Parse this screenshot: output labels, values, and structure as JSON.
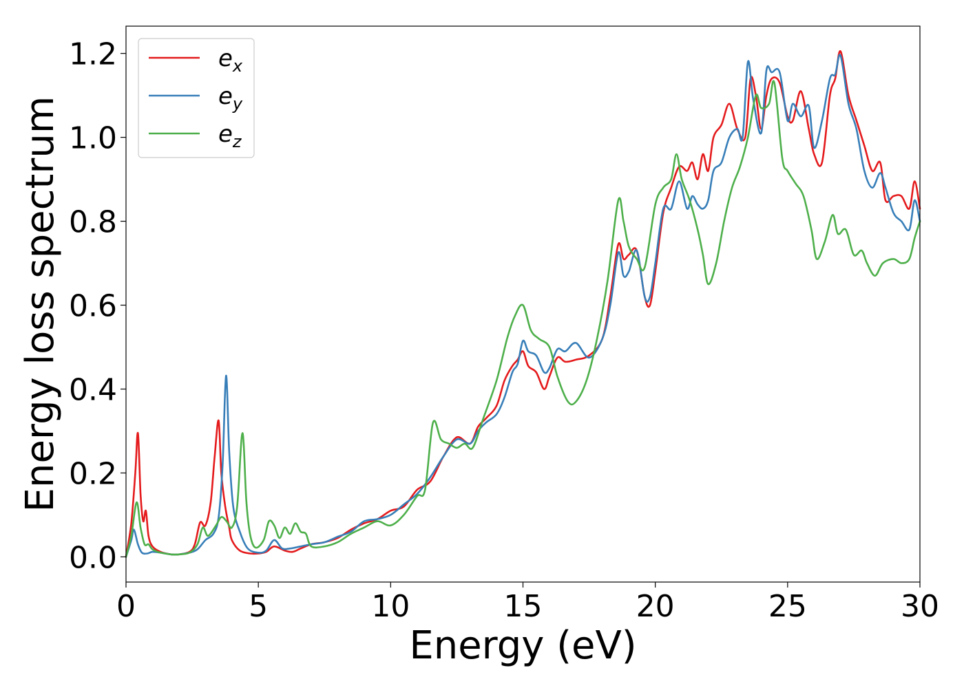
{
  "chart_data": {
    "type": "line",
    "xlabel": "Energy (eV)",
    "ylabel": "Energy loss spectrum",
    "xlim": [
      0,
      30
    ],
    "ylim": [
      -0.06,
      1.265
    ],
    "xticks": [
      0,
      5,
      10,
      15,
      20,
      25,
      30
    ],
    "xtick_labels": [
      "0",
      "5",
      "10",
      "15",
      "20",
      "25",
      "30"
    ],
    "yticks": [
      0.0,
      0.2,
      0.4,
      0.6,
      0.8,
      1.0,
      1.2
    ],
    "ytick_labels": [
      "0.0",
      "0.2",
      "0.4",
      "0.6",
      "0.8",
      "1.0",
      "1.2"
    ],
    "grid": false,
    "legend_position": "top-left",
    "series": [
      {
        "name": "e_x",
        "legend_base": "e",
        "legend_sub": "x",
        "color": "#e41a1c",
        "x": [
          0,
          0.2,
          0.35,
          0.45,
          0.55,
          0.65,
          0.75,
          0.85,
          1.0,
          1.3,
          1.7,
          2.0,
          2.4,
          2.6,
          2.8,
          3.0,
          3.2,
          3.35,
          3.5,
          3.6,
          3.75,
          3.9,
          4.0,
          4.3,
          4.7,
          5.0,
          5.3,
          5.6,
          6.0,
          6.3,
          6.6,
          7.0,
          7.5,
          8.0,
          8.5,
          9.0,
          9.5,
          10.0,
          10.5,
          11.0,
          11.5,
          12.0,
          12.5,
          13.0,
          13.3,
          13.6,
          14.0,
          14.3,
          14.6,
          14.8,
          15.0,
          15.2,
          15.5,
          15.8,
          16.0,
          16.3,
          16.6,
          17.0,
          17.5,
          18.0,
          18.3,
          18.6,
          18.8,
          19.0,
          19.3,
          19.6,
          19.8,
          20.0,
          20.3,
          20.6,
          20.9,
          21.2,
          21.4,
          21.6,
          21.8,
          22.0,
          22.2,
          22.5,
          22.8,
          23.1,
          23.4,
          23.6,
          23.8,
          24.0,
          24.2,
          24.4,
          24.7,
          25.0,
          25.2,
          25.5,
          25.8,
          26.0,
          26.3,
          26.6,
          26.8,
          27.0,
          27.3,
          27.6,
          27.9,
          28.2,
          28.5,
          28.7,
          29.0,
          29.3,
          29.6,
          29.8,
          30.0
        ],
        "y": [
          0.0,
          0.08,
          0.2,
          0.295,
          0.15,
          0.085,
          0.11,
          0.05,
          0.025,
          0.012,
          0.006,
          0.006,
          0.012,
          0.03,
          0.082,
          0.075,
          0.13,
          0.24,
          0.325,
          0.2,
          0.12,
          0.07,
          0.04,
          0.015,
          0.008,
          0.008,
          0.012,
          0.025,
          0.015,
          0.012,
          0.02,
          0.03,
          0.035,
          0.045,
          0.065,
          0.08,
          0.09,
          0.11,
          0.12,
          0.16,
          0.18,
          0.24,
          0.285,
          0.27,
          0.31,
          0.33,
          0.36,
          0.42,
          0.455,
          0.47,
          0.49,
          0.455,
          0.44,
          0.4,
          0.43,
          0.475,
          0.465,
          0.47,
          0.48,
          0.52,
          0.62,
          0.745,
          0.71,
          0.72,
          0.73,
          0.62,
          0.6,
          0.68,
          0.82,
          0.88,
          0.93,
          0.92,
          0.94,
          0.9,
          0.96,
          0.92,
          1.0,
          1.03,
          1.08,
          1.02,
          1.0,
          1.14,
          1.1,
          1.02,
          1.1,
          1.14,
          1.13,
          1.05,
          1.04,
          1.11,
          1.02,
          0.96,
          0.94,
          1.1,
          1.14,
          1.205,
          1.1,
          1.04,
          0.98,
          0.92,
          0.94,
          0.85,
          0.86,
          0.86,
          0.83,
          0.895,
          0.83
        ]
      },
      {
        "name": "e_y",
        "legend_base": "e",
        "legend_sub": "y",
        "color": "#377eb8",
        "x": [
          0,
          0.2,
          0.3,
          0.45,
          0.6,
          0.8,
          1.0,
          1.3,
          1.7,
          2.0,
          2.4,
          2.7,
          3.0,
          3.3,
          3.5,
          3.65,
          3.78,
          3.9,
          4.05,
          4.3,
          4.6,
          5.0,
          5.3,
          5.6,
          5.9,
          6.2,
          6.6,
          7.0,
          7.5,
          8.0,
          8.5,
          9.0,
          9.5,
          10.0,
          10.5,
          11.0,
          11.5,
          12.0,
          12.5,
          13.0,
          13.3,
          13.6,
          14.0,
          14.3,
          14.6,
          14.8,
          15.0,
          15.2,
          15.5,
          15.8,
          16.0,
          16.3,
          16.6,
          17.0,
          17.5,
          18.0,
          18.3,
          18.6,
          18.8,
          19.0,
          19.3,
          19.6,
          19.8,
          20.0,
          20.3,
          20.6,
          20.9,
          21.2,
          21.4,
          21.6,
          21.8,
          22.0,
          22.2,
          22.5,
          22.8,
          23.1,
          23.3,
          23.5,
          23.7,
          24.0,
          24.2,
          24.4,
          24.7,
          25.0,
          25.2,
          25.5,
          25.8,
          26.0,
          26.3,
          26.6,
          26.8,
          27.0,
          27.3,
          27.6,
          27.9,
          28.2,
          28.5,
          28.7,
          29.0,
          29.3,
          29.6,
          29.8,
          30.0
        ],
        "y": [
          0.0,
          0.04,
          0.065,
          0.03,
          0.01,
          0.008,
          0.012,
          0.01,
          0.006,
          0.006,
          0.01,
          0.018,
          0.04,
          0.055,
          0.095,
          0.22,
          0.432,
          0.25,
          0.12,
          0.06,
          0.02,
          0.01,
          0.015,
          0.04,
          0.02,
          0.02,
          0.025,
          0.03,
          0.035,
          0.048,
          0.06,
          0.085,
          0.09,
          0.1,
          0.125,
          0.15,
          0.19,
          0.24,
          0.28,
          0.27,
          0.3,
          0.32,
          0.34,
          0.38,
          0.44,
          0.46,
          0.515,
          0.49,
          0.48,
          0.44,
          0.45,
          0.495,
          0.49,
          0.51,
          0.475,
          0.52,
          0.6,
          0.725,
          0.67,
          0.68,
          0.73,
          0.62,
          0.62,
          0.7,
          0.83,
          0.83,
          0.895,
          0.83,
          0.86,
          0.84,
          0.83,
          0.85,
          0.92,
          0.94,
          1.0,
          1.02,
          1.0,
          1.18,
          1.09,
          1.01,
          1.16,
          1.155,
          1.155,
          1.04,
          1.08,
          1.05,
          1.075,
          0.975,
          1.04,
          1.14,
          1.15,
          1.195,
          1.08,
          1.02,
          0.92,
          0.88,
          0.915,
          0.88,
          0.82,
          0.8,
          0.78,
          0.85,
          0.8
        ]
      },
      {
        "name": "e_z",
        "legend_base": "e",
        "legend_sub": "z",
        "color": "#4daf4a",
        "x": [
          0,
          0.2,
          0.4,
          0.55,
          0.7,
          0.85,
          1.0,
          1.3,
          1.7,
          2.0,
          2.4,
          2.7,
          2.9,
          3.1,
          3.4,
          3.6,
          3.8,
          4.0,
          4.2,
          4.4,
          4.55,
          4.7,
          4.9,
          5.2,
          5.4,
          5.6,
          5.8,
          6.0,
          6.2,
          6.4,
          6.6,
          6.8,
          7.0,
          7.5,
          8.0,
          8.5,
          9.0,
          9.5,
          10.0,
          10.5,
          11.0,
          11.3,
          11.6,
          11.9,
          12.2,
          12.5,
          12.8,
          13.1,
          13.5,
          14.0,
          14.4,
          14.7,
          15.0,
          15.3,
          15.6,
          16.0,
          16.3,
          16.7,
          17.0,
          17.4,
          17.8,
          18.2,
          18.6,
          18.8,
          19.0,
          19.3,
          19.6,
          20.0,
          20.3,
          20.6,
          20.8,
          21.0,
          21.3,
          21.6,
          21.8,
          22.0,
          22.3,
          22.6,
          22.9,
          23.2,
          23.5,
          23.8,
          24.0,
          24.3,
          24.5,
          24.8,
          25.0,
          25.3,
          25.6,
          25.9,
          26.1,
          26.4,
          26.7,
          26.9,
          27.2,
          27.5,
          27.8,
          28.0,
          28.3,
          28.6,
          29.0,
          29.3,
          29.6,
          29.8,
          30.0
        ],
        "y": [
          0.0,
          0.05,
          0.13,
          0.07,
          0.03,
          0.03,
          0.018,
          0.01,
          0.006,
          0.006,
          0.01,
          0.03,
          0.07,
          0.05,
          0.075,
          0.095,
          0.085,
          0.07,
          0.12,
          0.295,
          0.13,
          0.05,
          0.022,
          0.04,
          0.085,
          0.075,
          0.045,
          0.07,
          0.055,
          0.08,
          0.06,
          0.055,
          0.025,
          0.025,
          0.035,
          0.055,
          0.07,
          0.085,
          0.075,
          0.1,
          0.145,
          0.16,
          0.32,
          0.28,
          0.27,
          0.26,
          0.27,
          0.26,
          0.33,
          0.42,
          0.52,
          0.575,
          0.6,
          0.54,
          0.52,
          0.5,
          0.43,
          0.37,
          0.37,
          0.42,
          0.52,
          0.66,
          0.85,
          0.8,
          0.74,
          0.71,
          0.69,
          0.84,
          0.88,
          0.9,
          0.96,
          0.9,
          0.85,
          0.78,
          0.72,
          0.65,
          0.7,
          0.8,
          0.88,
          0.93,
          1.0,
          1.1,
          1.07,
          1.08,
          1.13,
          0.95,
          0.92,
          0.89,
          0.86,
          0.78,
          0.71,
          0.75,
          0.815,
          0.77,
          0.78,
          0.72,
          0.73,
          0.7,
          0.67,
          0.7,
          0.71,
          0.7,
          0.71,
          0.76,
          0.8
        ]
      }
    ]
  }
}
